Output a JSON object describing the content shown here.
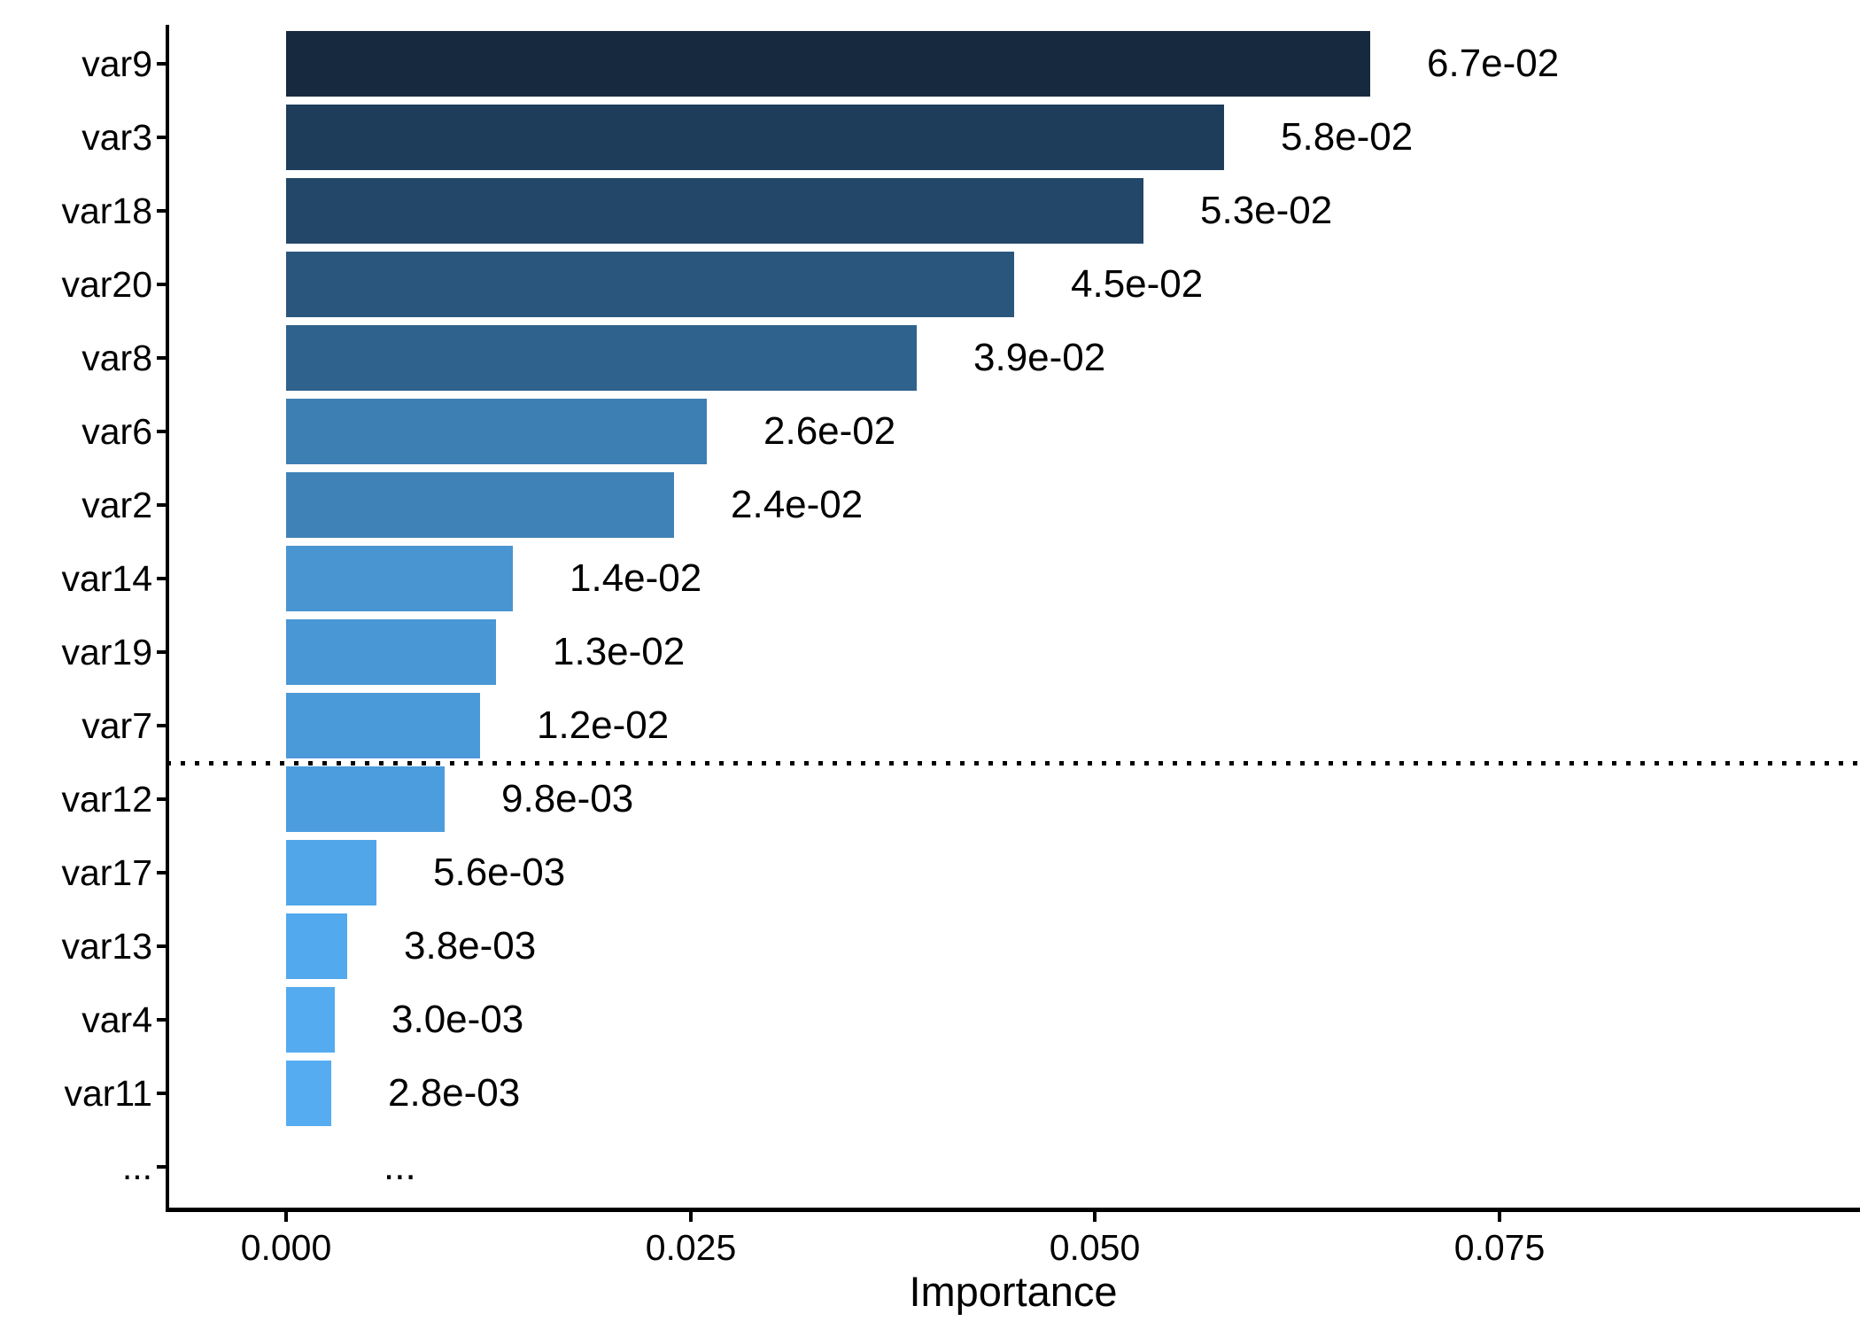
{
  "chart_data": {
    "type": "bar",
    "orientation": "horizontal",
    "title": "",
    "xlabel": "Importance",
    "ylabel": "",
    "x_ticks": [
      0.0,
      0.025,
      0.05,
      0.075
    ],
    "x_tick_labels": [
      "0.000",
      "0.025",
      "0.050",
      "0.075"
    ],
    "xlim": [
      -0.0075,
      0.0973
    ],
    "grid": "off",
    "legend": "none",
    "background_color": "#ffffff",
    "axis_color": "#000000",
    "threshold_line": {
      "style": "dotted",
      "color": "#000000",
      "between": [
        "var7",
        "var12"
      ]
    },
    "bars": [
      {
        "variable": "var9",
        "value": 0.067,
        "label": "6.7e-02",
        "color": "#17293f"
      },
      {
        "variable": "var3",
        "value": 0.058,
        "label": "5.8e-02",
        "color": "#1d3d5b"
      },
      {
        "variable": "var18",
        "value": 0.053,
        "label": "5.3e-02",
        "color": "#224768"
      },
      {
        "variable": "var20",
        "value": 0.045,
        "label": "4.5e-02",
        "color": "#2a567d"
      },
      {
        "variable": "var8",
        "value": 0.039,
        "label": "3.9e-02",
        "color": "#2f628c"
      },
      {
        "variable": "var6",
        "value": 0.026,
        "label": "2.6e-02",
        "color": "#3d7eb3"
      },
      {
        "variable": "var2",
        "value": 0.024,
        "label": "2.4e-02",
        "color": "#3f82b8"
      },
      {
        "variable": "var14",
        "value": 0.014,
        "label": "1.4e-02",
        "color": "#4895d2"
      },
      {
        "variable": "var19",
        "value": 0.013,
        "label": "1.3e-02",
        "color": "#4997d5"
      },
      {
        "variable": "var7",
        "value": 0.012,
        "label": "1.2e-02",
        "color": "#4a99d8"
      },
      {
        "variable": "var12",
        "value": 0.0098,
        "label": "9.8e-03",
        "color": "#4c9ddd"
      },
      {
        "variable": "var17",
        "value": 0.0056,
        "label": "5.6e-03",
        "color": "#50a6e8"
      },
      {
        "variable": "var13",
        "value": 0.0038,
        "label": "3.8e-03",
        "color": "#53a9ed"
      },
      {
        "variable": "var4",
        "value": 0.003,
        "label": "3.0e-03",
        "color": "#54abef"
      },
      {
        "variable": "var11",
        "value": 0.0028,
        "label": "2.8e-03",
        "color": "#55acf1"
      },
      {
        "variable": "...",
        "value": null,
        "label": "...",
        "color": null
      }
    ]
  }
}
